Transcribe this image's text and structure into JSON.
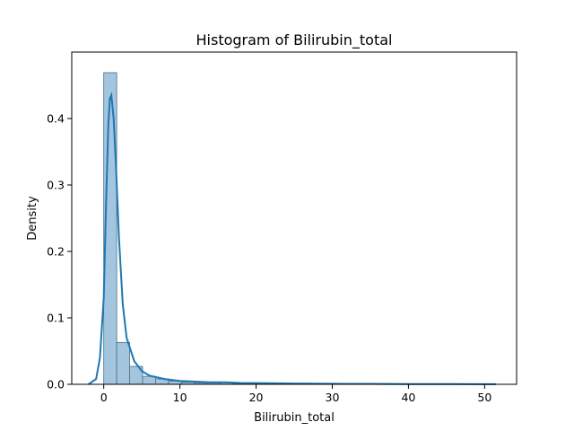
{
  "chart_data": {
    "type": "bar",
    "title": "Histogram of Bilirubin_total",
    "xlabel": "Bilirubin_total",
    "ylabel": "Density",
    "xlim": [
      -4.2,
      54.2
    ],
    "ylim": [
      0,
      0.5
    ],
    "x_ticks": [
      0,
      10,
      20,
      30,
      40,
      50
    ],
    "y_ticks": [
      0.0,
      0.1,
      0.2,
      0.3,
      0.4
    ],
    "x_tick_labels": [
      "0",
      "10",
      "20",
      "30",
      "40",
      "50"
    ],
    "y_tick_labels": [
      "0.0",
      "0.1",
      "0.2",
      "0.3",
      "0.4"
    ],
    "grid": false,
    "legend": "none",
    "bin_edges": [
      0.0,
      1.7,
      3.4,
      5.1,
      6.8,
      8.5,
      10.2,
      11.9,
      13.6,
      15.3,
      17.0,
      18.7,
      20.4,
      22.1,
      23.8,
      25.5,
      27.2,
      28.9,
      30.6,
      32.3,
      34.0,
      35.7,
      37.4,
      39.1,
      40.8,
      42.5,
      44.2,
      45.9,
      47.6,
      49.3,
      51.0
    ],
    "densities": [
      0.469,
      0.063,
      0.027,
      0.012,
      0.008,
      0.005,
      0.003,
      0.002,
      0.002,
      0.003,
      0.001,
      0.001,
      0.001,
      0.001,
      0.001,
      0.0008,
      0.0008,
      0.0005,
      0.0005,
      0.0005,
      0.0005,
      0.0004,
      0.0003,
      0.0003,
      0.0003,
      0.0003,
      0.0003,
      0.0003,
      0.0003,
      0.0004
    ],
    "kde": {
      "x": [
        -2,
        -1,
        -0.5,
        0,
        0.3,
        0.6,
        0.8,
        1.0,
        1.3,
        1.6,
        2.0,
        2.5,
        3,
        4,
        5,
        6,
        8,
        10,
        12,
        14,
        16,
        18,
        20,
        25,
        30,
        35,
        40,
        45,
        50,
        51.5
      ],
      "y": [
        0.0,
        0.008,
        0.04,
        0.13,
        0.27,
        0.39,
        0.43,
        0.435,
        0.4,
        0.33,
        0.22,
        0.12,
        0.07,
        0.035,
        0.02,
        0.013,
        0.008,
        0.005,
        0.004,
        0.003,
        0.003,
        0.002,
        0.0018,
        0.0012,
        0.0008,
        0.0006,
        0.0004,
        0.0003,
        0.0002,
        0.0001
      ]
    },
    "colors": {
      "bar_fill": "#a3c5de",
      "bar_edge": "#4c6f87",
      "kde_line": "#1f77b4"
    }
  }
}
